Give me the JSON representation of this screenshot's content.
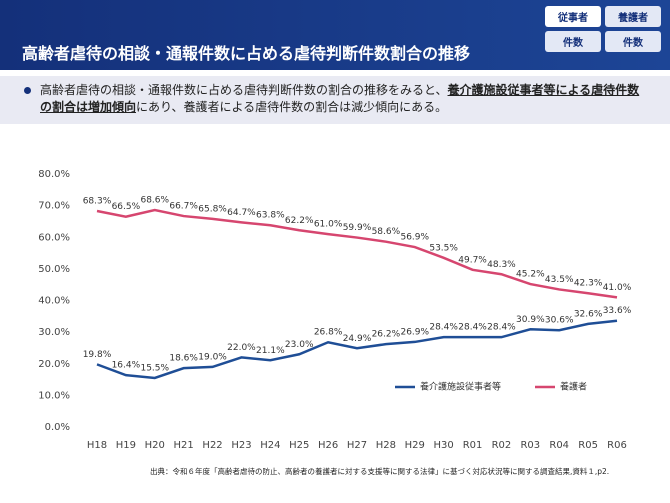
{
  "header": {
    "title": "高齢者虐待の相談・通報件数に占める虐待判断件数割合の推移",
    "badges": [
      "従事者",
      "養護者",
      "件数",
      "件数"
    ]
  },
  "summary": [
    "高齢者虐待の相談・通報件数に占める虐待判断件数の割合の推移をみると、",
    "養介護施設従事者等による虐待件数の割合は増加傾向",
    "にあり、養護者による虐待件数の割合は減少傾向にある。"
  ],
  "chart_data": {
    "type": "line",
    "categories": [
      "H18",
      "H19",
      "H20",
      "H21",
      "H22",
      "H23",
      "H24",
      "H25",
      "H26",
      "H27",
      "H28",
      "H29",
      "H30",
      "R01",
      "R02",
      "R03",
      "R04",
      "R05",
      "R06"
    ],
    "series": [
      {
        "name": "養介護施設従事者等",
        "color": "#1f4e96",
        "values": [
          19.8,
          16.4,
          15.5,
          18.6,
          19.0,
          22.0,
          21.1,
          23.0,
          26.8,
          24.9,
          26.2,
          26.9,
          28.4,
          28.4,
          28.4,
          30.9,
          30.6,
          32.6,
          33.6
        ],
        "value_labels": [
          "19.8%",
          "16.4%",
          "15.5%",
          "18.6%",
          "19.0%",
          "22.0%",
          "21.1%",
          "23.0%",
          "26.8%",
          "24.9%",
          "26.2%",
          "26.9%",
          "28.4%",
          "28.4%",
          "28.4%",
          "30.9%",
          "30.6%",
          "32.6%",
          "33.6%"
        ]
      },
      {
        "name": "養護者",
        "color": "#d6466f",
        "values": [
          68.3,
          66.5,
          68.6,
          66.7,
          65.8,
          64.7,
          63.8,
          62.2,
          61.0,
          59.9,
          58.6,
          56.9,
          53.5,
          49.7,
          48.3,
          45.2,
          43.5,
          42.3,
          41.0
        ],
        "value_labels": [
          "68.3%",
          "66.5%",
          "68.6%",
          "66.7%",
          "65.8%",
          "64.7%",
          "63.8%",
          "62.2%",
          "61.0%",
          "59.9%",
          "58.6%",
          "56.9%",
          "53.5%",
          "49.7%",
          "48.3%",
          "45.2%",
          "43.5%",
          "42.3%",
          "41.0%"
        ]
      }
    ],
    "ylim": [
      0,
      80
    ],
    "yticks": [
      {
        "value": 0,
        "label": "0.0%"
      },
      {
        "value": 10,
        "label": "10.0%"
      },
      {
        "value": 20,
        "label": "20.0%"
      },
      {
        "value": 30,
        "label": "30.0%"
      },
      {
        "value": 40,
        "label": "40.0%"
      },
      {
        "value": 50,
        "label": "50.0%"
      },
      {
        "value": 60,
        "label": "60.0%"
      },
      {
        "value": 70,
        "label": "70.0%"
      },
      {
        "value": 80,
        "label": "80.0%"
      }
    ],
    "grid": false
  },
  "source": "出典：令和６年度「高齢者虐待の防止、高齢者の養護者に対する支援等に関する法律」に基づく対応状況等に関する調査結果,資料１,p2."
}
